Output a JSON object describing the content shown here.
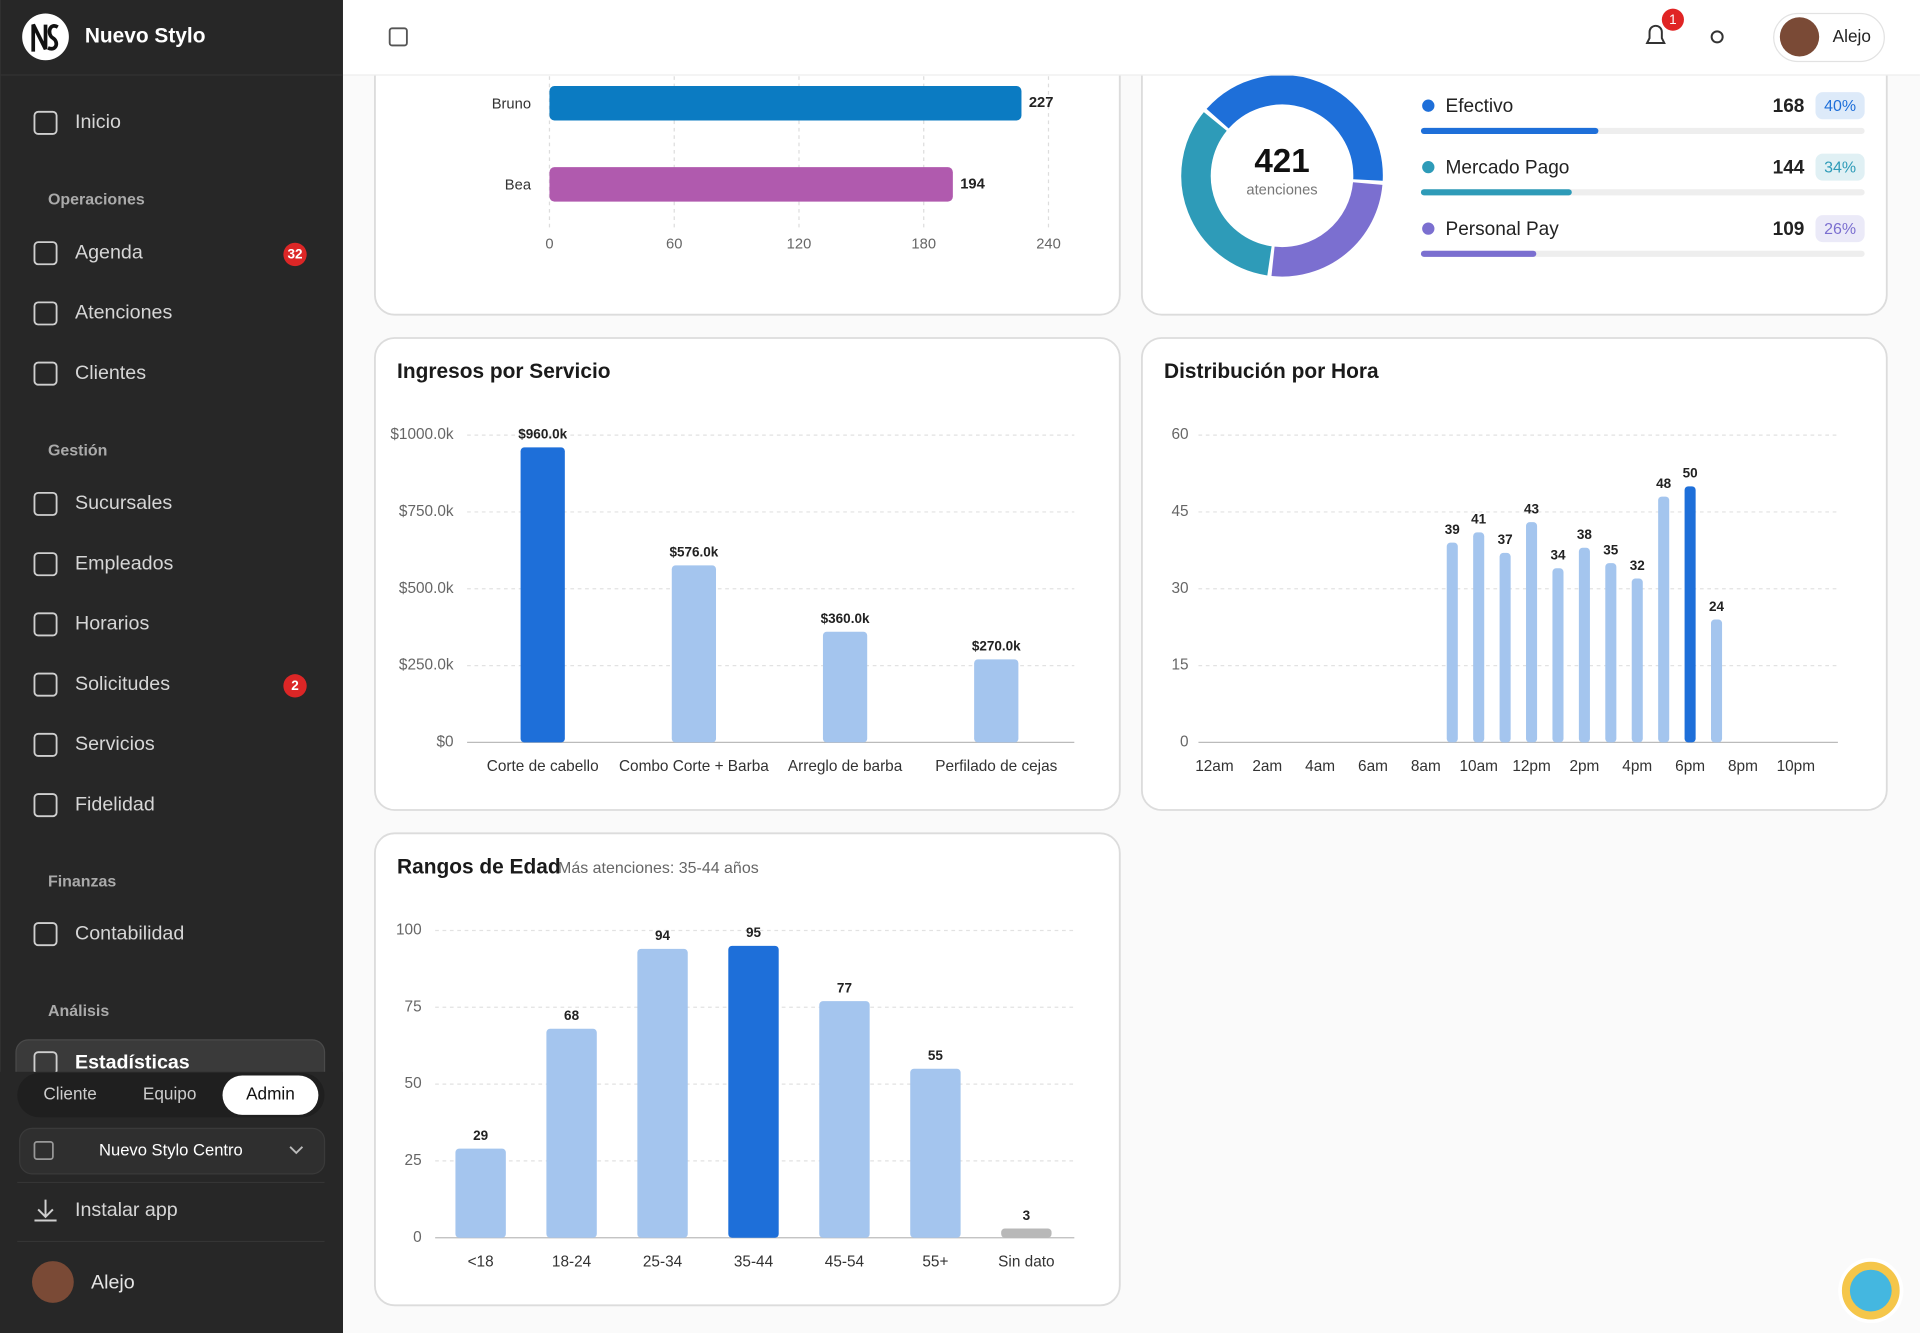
{
  "sidebar": {
    "brand": "Nuevo Stylo",
    "home": "Inicio",
    "sections": [
      {
        "title": "Operaciones",
        "items": [
          {
            "label": "Agenda",
            "badge": 32
          },
          {
            "label": "Atenciones"
          },
          {
            "label": "Clientes"
          }
        ]
      },
      {
        "title": "Gestión",
        "items": [
          {
            "label": "Sucursales"
          },
          {
            "label": "Empleados"
          },
          {
            "label": "Horarios"
          },
          {
            "label": "Solicitudes",
            "badge": 2
          },
          {
            "label": "Servicios"
          },
          {
            "label": "Fidelidad"
          }
        ]
      },
      {
        "title": "Finanzas",
        "items": [
          {
            "label": "Contabilidad"
          }
        ]
      },
      {
        "title": "Análisis",
        "items": [
          {
            "label": "Estadísticas",
            "active": true
          }
        ]
      }
    ],
    "roles": [
      {
        "label": "Cliente"
      },
      {
        "label": "Equipo"
      },
      {
        "label": "Admin",
        "active": true
      }
    ],
    "branch": "Nuevo Stylo Centro",
    "install": "Instalar app",
    "user": "Alejo"
  },
  "header": {
    "notifications": 1,
    "user": "Alejo"
  },
  "chart_data": [
    {
      "type": "hbar",
      "categories": [
        "Bruno",
        "Bea"
      ],
      "values": [
        227,
        194
      ],
      "colors": [
        "#0b7bc2",
        "#b05aae"
      ],
      "xlim": [
        0,
        240
      ],
      "xticks": [
        0,
        60,
        120,
        180,
        240
      ],
      "grid": true
    },
    {
      "type": "donut",
      "total": 421,
      "total_label": "atenciones",
      "categories": [
        "Efectivo",
        "Mercado Pago",
        "Personal Pay"
      ],
      "values": [
        168,
        144,
        109
      ],
      "percents": [
        40,
        34,
        26
      ],
      "percent_labels": [
        "40%",
        "34%",
        "26%"
      ],
      "colors": [
        "#1e6fd9",
        "#2e9bb8",
        "#7b6fd0"
      ]
    },
    {
      "type": "bar",
      "title": "Ingresos por Servicio",
      "categories": [
        "Corte de cabello",
        "Combo Corte + Barba",
        "Arreglo de barba",
        "Perfilado de cejas"
      ],
      "values": [
        960000,
        576000,
        360000,
        270000
      ],
      "value_labels": [
        "$960.0k",
        "$576.0k",
        "$360.0k",
        "$270.0k"
      ],
      "colors": [
        "#1e6fd9",
        "#a4c5ee",
        "#a4c5ee",
        "#a4c5ee"
      ],
      "ylim": [
        0,
        1000000
      ],
      "yticks": [
        {
          "value": 0,
          "label": "$0"
        },
        {
          "value": 250000,
          "label": "$250.0k"
        },
        {
          "value": 500000,
          "label": "$500.0k"
        },
        {
          "value": 750000,
          "label": "$750.0k"
        },
        {
          "value": 1000000,
          "label": "$1000.0k"
        }
      ],
      "grid": true
    },
    {
      "type": "bar",
      "title": "Distribución por Hora",
      "categories": [
        "12am",
        null,
        "2am",
        null,
        "4am",
        null,
        "6am",
        null,
        "8am",
        null,
        "10am",
        null,
        "12pm",
        null,
        "2pm",
        null,
        "4pm",
        null,
        "6pm",
        null,
        "8pm",
        null,
        "10pm",
        null
      ],
      "values": [
        0,
        0,
        0,
        0,
        0,
        0,
        0,
        0,
        0,
        39,
        41,
        37,
        43,
        34,
        38,
        35,
        32,
        48,
        50,
        24,
        0,
        0,
        0,
        0
      ],
      "colors": [
        "#a4c5ee",
        "#a4c5ee",
        "#a4c5ee",
        "#a4c5ee",
        "#a4c5ee",
        "#a4c5ee",
        "#a4c5ee",
        "#a4c5ee",
        "#a4c5ee",
        "#a4c5ee",
        "#a4c5ee",
        "#a4c5ee",
        "#a4c5ee",
        "#a4c5ee",
        "#a4c5ee",
        "#a4c5ee",
        "#a4c5ee",
        "#a4c5ee",
        "#1e6fd9",
        "#a4c5ee",
        "#a4c5ee",
        "#a4c5ee",
        "#a4c5ee",
        "#a4c5ee"
      ],
      "ylim": [
        0,
        60
      ],
      "yticks": [
        0,
        15,
        30,
        45,
        60
      ],
      "grid": true
    },
    {
      "type": "bar",
      "title": "Rangos de Edad",
      "subtitle": "Más atenciones: 35-44 años",
      "categories": [
        "<18",
        "18-24",
        "25-34",
        "35-44",
        "45-54",
        "55+",
        "Sin dato"
      ],
      "values": [
        29,
        68,
        94,
        95,
        77,
        55,
        3
      ],
      "colors": [
        "#a4c5ee",
        "#a4c5ee",
        "#a4c5ee",
        "#1e6fd9",
        "#a4c5ee",
        "#a4c5ee",
        "#b8b8b8"
      ],
      "ylim": [
        0,
        100
      ],
      "yticks": [
        0,
        25,
        50,
        75,
        100
      ],
      "grid": true
    }
  ]
}
